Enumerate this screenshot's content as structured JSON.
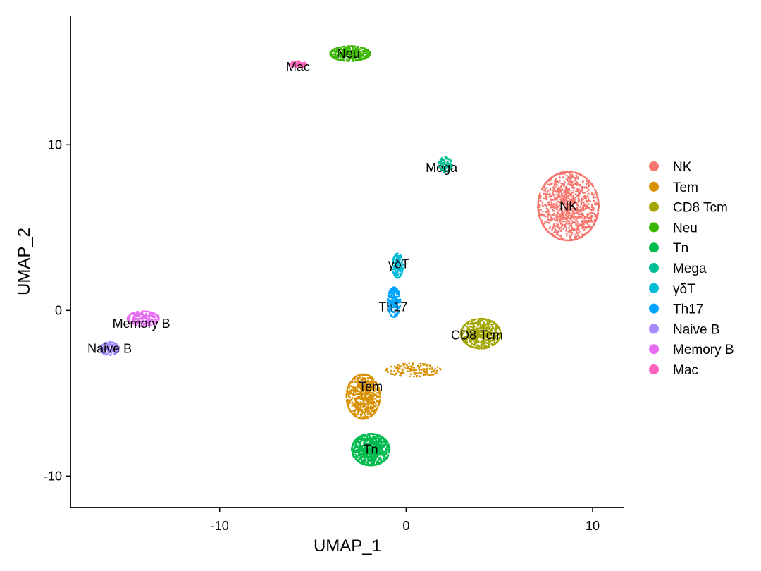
{
  "chart_data": {
    "type": "scatter",
    "title": "",
    "xlabel": "UMAP_1",
    "ylabel": "UMAP_2",
    "xlim": [
      -18,
      11.7
    ],
    "ylim": [
      -11.9,
      17.8
    ],
    "x_ticks": [
      -10,
      0,
      10
    ],
    "y_ticks": [
      -10,
      0,
      10
    ],
    "grid": false,
    "legend_position": "right",
    "series": [
      {
        "name": "NK",
        "color": "#F8766D",
        "label": "NK",
        "label_pos": [
          8.7,
          6.3
        ],
        "clusters": [
          {
            "center": [
              8.7,
              6.3
            ],
            "spread": [
              1.45,
              1.85
            ],
            "count": 1300
          }
        ]
      },
      {
        "name": "Tem",
        "color": "#D89000",
        "label": "Tem",
        "label_pos": [
          -1.9,
          -4.6
        ],
        "clusters": [
          {
            "center": [
              -2.3,
              -5.2
            ],
            "spread": [
              0.8,
              1.2
            ],
            "count": 700
          },
          {
            "center": [
              0.4,
              -3.6
            ],
            "spread": [
              1.3,
              0.35
            ],
            "count": 150
          }
        ]
      },
      {
        "name": "CD8 Tcm",
        "color": "#A3A500",
        "label": "CD8 Tcm",
        "label_pos": [
          3.8,
          -1.5
        ],
        "clusters": [
          {
            "center": [
              4.0,
              -1.4
            ],
            "spread": [
              0.95,
              0.8
            ],
            "count": 650
          }
        ]
      },
      {
        "name": "Neu",
        "color": "#39B600",
        "label": "Neu",
        "label_pos": [
          -3.1,
          15.5
        ],
        "clusters": [
          {
            "center": [
              -3.0,
              15.5
            ],
            "spread": [
              0.95,
              0.4
            ],
            "count": 450
          }
        ]
      },
      {
        "name": "Tn",
        "color": "#00BB4E",
        "label": "Tn",
        "label_pos": [
          -1.9,
          -8.4
        ],
        "clusters": [
          {
            "center": [
              -1.9,
              -8.4
            ],
            "spread": [
              0.9,
              0.85
            ],
            "count": 1000
          }
        ]
      },
      {
        "name": "Mega",
        "color": "#00BF96",
        "label": "Mega",
        "label_pos": [
          1.9,
          8.6
        ],
        "clusters": [
          {
            "center": [
              2.1,
              8.8
            ],
            "spread": [
              0.32,
              0.4
            ],
            "count": 110
          }
        ]
      },
      {
        "name": "γδT",
        "color": "#00BCD8",
        "label": "γδT",
        "label_pos": [
          -0.4,
          2.8
        ],
        "clusters": [
          {
            "center": [
              -0.45,
              2.7
            ],
            "spread": [
              0.25,
              0.65
            ],
            "count": 180
          }
        ]
      },
      {
        "name": "Th17",
        "color": "#00A5FF",
        "label": "Th17",
        "label_pos": [
          -0.7,
          0.2
        ],
        "clusters": [
          {
            "center": [
              -0.65,
              0.5
            ],
            "spread": [
              0.3,
              0.8
            ],
            "count": 250
          }
        ]
      },
      {
        "name": "Naive B",
        "color": "#A58AFF",
        "label": "Naive B",
        "label_pos": [
          -15.9,
          -2.3
        ],
        "clusters": [
          {
            "center": [
              -15.9,
              -2.3
            ],
            "spread": [
              0.45,
              0.35
            ],
            "count": 170
          }
        ]
      },
      {
        "name": "Memory B",
        "color": "#E76BF3",
        "label": "Memory B",
        "label_pos": [
          -14.2,
          -0.8
        ],
        "clusters": [
          {
            "center": [
              -14.1,
              -0.5
            ],
            "spread": [
              0.75,
              0.4
            ],
            "count": 260
          }
        ]
      },
      {
        "name": "Mac",
        "color": "#FF62BC",
        "label": "Mac",
        "label_pos": [
          -5.8,
          14.7
        ],
        "clusters": [
          {
            "center": [
              -5.8,
              14.85
            ],
            "spread": [
              0.4,
              0.18
            ],
            "count": 60
          }
        ]
      }
    ]
  }
}
